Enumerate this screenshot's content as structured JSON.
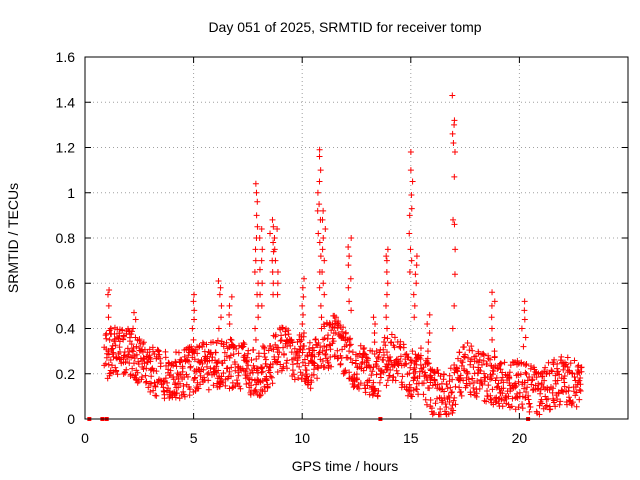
{
  "chart_data": {
    "type": "scatter",
    "title": "Day 051 of 2025, SRMTID for receiver tomp",
    "xlabel": "GPS time / hours",
    "ylabel": "SRMTID / TECUs",
    "xlim": [
      0,
      25
    ],
    "ylim": [
      0,
      1.6
    ],
    "xticks": [
      0,
      5,
      10,
      15,
      20
    ],
    "xtick_labels": [
      "0",
      "5",
      "10",
      "15",
      "20"
    ],
    "yticks": [
      0,
      0.2,
      0.4,
      0.6,
      0.8,
      1,
      1.2,
      1.4,
      1.6
    ],
    "ytick_labels": [
      "0",
      "0.2",
      "0.4",
      "0.6",
      "0.8",
      "1",
      "1.2",
      "1.4",
      "1.6"
    ],
    "grid": true,
    "marker": "+",
    "color": "#ff0000",
    "baseline": {
      "x": [
        0,
        0.5,
        1,
        1.5,
        2,
        2.5,
        3,
        3.5,
        4,
        4.5,
        5,
        5.5,
        6,
        6.5,
        7,
        7.5,
        8,
        8.5,
        9,
        9.5,
        10,
        10.5,
        11,
        11.5,
        12,
        12.5,
        13,
        13.5,
        14,
        14.5,
        15,
        15.5,
        16,
        16.5,
        17,
        17.5,
        18,
        18.5,
        19,
        19.5,
        20,
        20.5,
        21,
        21.5,
        22,
        22.5,
        23
      ],
      "y": [
        0.2,
        0.24,
        0.28,
        0.3,
        0.3,
        0.26,
        0.22,
        0.2,
        0.19,
        0.2,
        0.22,
        0.23,
        0.24,
        0.24,
        0.25,
        0.22,
        0.2,
        0.24,
        0.3,
        0.28,
        0.26,
        0.24,
        0.32,
        0.35,
        0.28,
        0.24,
        0.22,
        0.2,
        0.28,
        0.24,
        0.2,
        0.22,
        0.12,
        0.1,
        0.14,
        0.24,
        0.2,
        0.18,
        0.16,
        0.15,
        0.15,
        0.14,
        0.12,
        0.15,
        0.17,
        0.16,
        0.16
      ]
    },
    "bursts": [
      {
        "x": 1.1,
        "y": [
          0.57,
          0.55,
          0.5,
          0.45,
          0.4,
          0.35,
          0.3
        ]
      },
      {
        "x": 2.3,
        "y": [
          0.47,
          0.44,
          0.4,
          0.36,
          0.32
        ]
      },
      {
        "x": 5.0,
        "y": [
          0.55,
          0.52,
          0.48,
          0.44,
          0.4,
          0.35,
          0.3
        ]
      },
      {
        "x": 6.2,
        "y": [
          0.61,
          0.58,
          0.55,
          0.5,
          0.45,
          0.4
        ]
      },
      {
        "x": 6.7,
        "y": [
          0.54,
          0.5,
          0.46,
          0.42
        ]
      },
      {
        "x": 7.9,
        "y": [
          1.04,
          1.0,
          0.96,
          0.9,
          0.85,
          0.8,
          0.75,
          0.7,
          0.65,
          0.6,
          0.55,
          0.5,
          0.45,
          0.4,
          0.35
        ]
      },
      {
        "x": 8.1,
        "y": [
          0.84,
          0.8,
          0.75,
          0.7,
          0.66,
          0.6,
          0.55,
          0.5
        ]
      },
      {
        "x": 8.6,
        "y": [
          0.88,
          0.85,
          0.82,
          0.78,
          0.74,
          0.7,
          0.65,
          0.6,
          0.55
        ]
      },
      {
        "x": 8.8,
        "y": [
          0.84,
          0.8,
          0.75,
          0.7,
          0.65,
          0.6,
          0.55
        ]
      },
      {
        "x": 10.0,
        "y": [
          0.62,
          0.58,
          0.54,
          0.5,
          0.46,
          0.42,
          0.38
        ]
      },
      {
        "x": 10.8,
        "y": [
          1.19,
          1.16,
          1.1,
          1.05,
          1.0,
          0.95,
          0.92,
          0.88,
          0.82,
          0.78,
          0.72,
          0.65,
          0.58,
          0.5,
          0.45
        ]
      },
      {
        "x": 11.0,
        "y": [
          0.92,
          0.88,
          0.84,
          0.8,
          0.75,
          0.7,
          0.65,
          0.6,
          0.55
        ]
      },
      {
        "x": 12.2,
        "y": [
          0.8,
          0.76,
          0.72,
          0.68,
          0.62,
          0.58,
          0.52,
          0.48
        ]
      },
      {
        "x": 13.3,
        "y": [
          0.45,
          0.42,
          0.38,
          0.34,
          0.3
        ]
      },
      {
        "x": 13.9,
        "y": [
          0.75,
          0.72,
          0.7,
          0.65,
          0.6,
          0.55,
          0.5,
          0.45,
          0.4
        ]
      },
      {
        "x": 15.0,
        "y": [
          1.18,
          1.1,
          1.05,
          0.99,
          0.93,
          0.9,
          0.82,
          0.75,
          0.7,
          0.65
        ]
      },
      {
        "x": 15.2,
        "y": [
          0.72,
          0.68,
          0.64,
          0.6,
          0.55,
          0.5,
          0.45
        ]
      },
      {
        "x": 15.8,
        "y": [
          0.46,
          0.42,
          0.38,
          0.34,
          0.3
        ]
      },
      {
        "x": 17.0,
        "y": [
          1.43,
          1.32,
          1.3,
          1.26,
          1.22,
          1.18,
          1.07,
          0.88,
          0.86,
          0.75,
          0.64,
          0.5,
          0.4
        ]
      },
      {
        "x": 18.8,
        "y": [
          0.56,
          0.52,
          0.5,
          0.45,
          0.4,
          0.35,
          0.3
        ]
      },
      {
        "x": 20.2,
        "y": [
          0.52,
          0.48,
          0.44,
          0.4,
          0.36,
          0.32
        ]
      }
    ],
    "zero_points": [
      0.2,
      0.8,
      1.0,
      13.6,
      20.4
    ]
  }
}
